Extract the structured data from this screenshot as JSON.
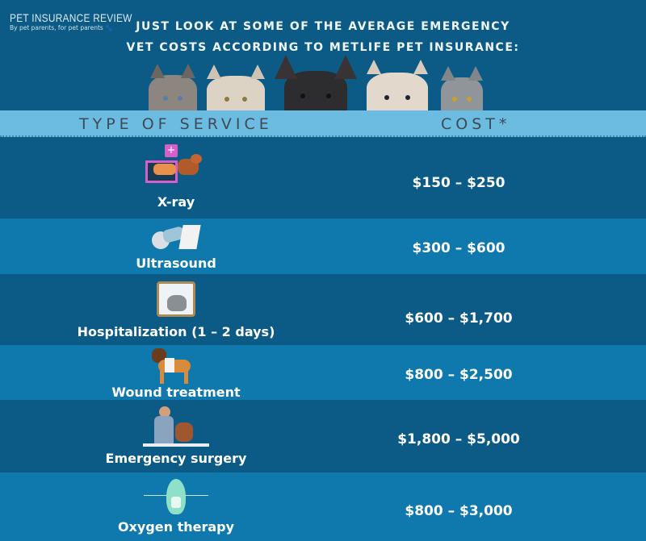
{
  "logo": {
    "title": "PET INSURANCE REVIEW",
    "tagline": "By pet parents, for pet parents"
  },
  "headline": {
    "line1": "JUST LOOK AT SOME OF THE AVERAGE EMERGENCY",
    "line2": "VET COSTS ACCORDING TO METLIFE PET INSURANCE:"
  },
  "table": {
    "headers": {
      "service": "TYPE OF SERVICE",
      "cost": "COST*"
    },
    "rows": [
      {
        "service": "X-ray",
        "cost": "$150 – $250",
        "icon": "xray-icon"
      },
      {
        "service": "Ultrasound",
        "cost": "$300 – $600",
        "icon": "ultrasound-probe-icon"
      },
      {
        "service": "Hospitalization (1 – 2 days)",
        "cost": "$600 – $1,700",
        "icon": "hospital-cage-cat-icon"
      },
      {
        "service": "Wound treatment",
        "cost": "$800 – $2,500",
        "icon": "bandaged-dog-icon"
      },
      {
        "service": "Emergency surgery",
        "cost": "$1,800 – $5,000",
        "icon": "vet-surgery-icon"
      },
      {
        "service": "Oxygen therapy",
        "cost": "$800 – $3,000",
        "icon": "oxygen-mask-icon"
      }
    ]
  },
  "colors": {
    "background": "#0b5b86",
    "row_alt": "#0f78ad",
    "header_bar": "#6cbbe0",
    "header_text": "#3e4a55"
  }
}
